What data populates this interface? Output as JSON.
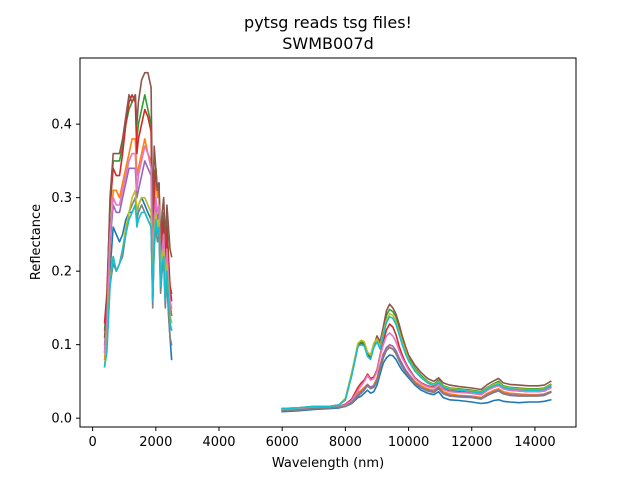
{
  "chart_data": {
    "type": "line",
    "title": "pytsg reads tsg files!",
    "subtitle": "SWMB007d",
    "xlabel": "Wavelength (nm)",
    "ylabel": "Reflectance",
    "xlim": [
      -400,
      15300
    ],
    "ylim": [
      -0.012,
      0.49
    ],
    "xticks": [
      0,
      2000,
      4000,
      6000,
      8000,
      10000,
      12000,
      14000
    ],
    "yticks": [
      0.0,
      0.1,
      0.2,
      0.3,
      0.4
    ],
    "xtick_labels": [
      "0",
      "2000",
      "4000",
      "6000",
      "8000",
      "10000",
      "12000",
      "14000"
    ],
    "ytick_labels": [
      "0.0",
      "0.1",
      "0.2",
      "0.3",
      "0.4"
    ],
    "grid": false,
    "segments": [
      {
        "x": [
          380,
          450,
          550,
          650,
          750,
          850,
          950,
          1050,
          1150,
          1250,
          1350,
          1400,
          1450,
          1550,
          1650,
          1750,
          1850,
          1900,
          1950,
          2000,
          2050,
          2100,
          2150,
          2200,
          2250,
          2300,
          2350,
          2400,
          2450,
          2500
        ]
      },
      {
        "x": [
          6000,
          6500,
          7000,
          7500,
          7800,
          8000,
          8200,
          8400,
          8500,
          8600,
          8700,
          8800,
          8900,
          9000,
          9100,
          9200,
          9300,
          9400,
          9500,
          9600,
          9700,
          9800,
          9900,
          10000,
          10200,
          10400,
          10600,
          10800,
          10950,
          11100,
          11300,
          11600,
          12000,
          12300,
          12500,
          12700,
          12850,
          13000,
          13200,
          13500,
          13800,
          14100,
          14300,
          14500
        ]
      }
    ],
    "series": [
      {
        "color": "#1f77b4",
        "shape_vis": [
          0.09,
          0.13,
          0.2,
          0.26,
          0.25,
          0.24,
          0.25,
          0.27,
          0.28,
          0.28,
          0.29,
          0.27,
          0.29,
          0.3,
          0.29,
          0.28,
          0.27,
          0.16,
          0.24,
          0.28,
          0.25,
          0.26,
          0.18,
          0.21,
          0.22,
          0.16,
          0.2,
          0.15,
          0.11,
          0.08
        ],
        "swir": [
          0.009,
          0.01,
          0.012,
          0.013,
          0.014,
          0.016,
          0.02,
          0.028,
          0.03,
          0.034,
          0.038,
          0.034,
          0.036,
          0.045,
          0.06,
          0.075,
          0.082,
          0.086,
          0.085,
          0.08,
          0.072,
          0.065,
          0.06,
          0.055,
          0.045,
          0.038,
          0.034,
          0.032,
          0.036,
          0.028,
          0.025,
          0.024,
          0.022,
          0.02,
          0.021,
          0.024,
          0.025,
          0.023,
          0.022,
          0.021,
          0.022,
          0.022,
          0.023,
          0.025
        ]
      },
      {
        "color": "#ff7f0e",
        "shape_vis": [
          0.08,
          0.12,
          0.23,
          0.31,
          0.31,
          0.3,
          0.32,
          0.34,
          0.36,
          0.38,
          0.38,
          0.33,
          0.34,
          0.36,
          0.38,
          0.36,
          0.35,
          0.2,
          0.28,
          0.33,
          0.3,
          0.31,
          0.22,
          0.25,
          0.26,
          0.2,
          0.24,
          0.2,
          0.16,
          0.14
        ],
        "swir": [
          0.012,
          0.013,
          0.015,
          0.015,
          0.016,
          0.019,
          0.025,
          0.035,
          0.038,
          0.042,
          0.046,
          0.042,
          0.045,
          0.055,
          0.072,
          0.088,
          0.095,
          0.097,
          0.094,
          0.088,
          0.08,
          0.072,
          0.066,
          0.06,
          0.05,
          0.044,
          0.04,
          0.038,
          0.043,
          0.036,
          0.033,
          0.031,
          0.03,
          0.028,
          0.034,
          0.038,
          0.04,
          0.036,
          0.034,
          0.033,
          0.032,
          0.032,
          0.033,
          0.036
        ]
      },
      {
        "color": "#2ca02c",
        "shape_vis": [
          0.12,
          0.16,
          0.28,
          0.35,
          0.35,
          0.35,
          0.37,
          0.4,
          0.42,
          0.43,
          0.44,
          0.38,
          0.4,
          0.42,
          0.44,
          0.42,
          0.4,
          0.23,
          0.33,
          0.34,
          0.31,
          0.32,
          0.22,
          0.26,
          0.28,
          0.21,
          0.27,
          0.22,
          0.18,
          0.17
        ],
        "swir": [
          0.013,
          0.014,
          0.016,
          0.016,
          0.018,
          0.026,
          0.06,
          0.1,
          0.104,
          0.102,
          0.088,
          0.084,
          0.1,
          0.11,
          0.1,
          0.12,
          0.14,
          0.148,
          0.145,
          0.138,
          0.124,
          0.108,
          0.094,
          0.082,
          0.068,
          0.058,
          0.05,
          0.046,
          0.052,
          0.044,
          0.041,
          0.04,
          0.038,
          0.036,
          0.042,
          0.047,
          0.05,
          0.044,
          0.042,
          0.041,
          0.04,
          0.04,
          0.041,
          0.046
        ]
      },
      {
        "color": "#d62728",
        "shape_vis": [
          0.13,
          0.17,
          0.29,
          0.34,
          0.33,
          0.33,
          0.36,
          0.4,
          0.43,
          0.44,
          0.43,
          0.36,
          0.38,
          0.4,
          0.42,
          0.41,
          0.39,
          0.23,
          0.31,
          0.34,
          0.31,
          0.32,
          0.22,
          0.25,
          0.27,
          0.2,
          0.26,
          0.21,
          0.18,
          0.16
        ],
        "swir": [
          0.011,
          0.012,
          0.014,
          0.015,
          0.016,
          0.019,
          0.026,
          0.042,
          0.048,
          0.052,
          0.06,
          0.054,
          0.056,
          0.066,
          0.086,
          0.104,
          0.12,
          0.128,
          0.124,
          0.114,
          0.098,
          0.086,
          0.076,
          0.068,
          0.055,
          0.048,
          0.044,
          0.042,
          0.048,
          0.04,
          0.037,
          0.036,
          0.034,
          0.032,
          0.038,
          0.043,
          0.046,
          0.04,
          0.038,
          0.037,
          0.036,
          0.036,
          0.037,
          0.042
        ]
      },
      {
        "color": "#9467bd",
        "shape_vis": [
          0.1,
          0.14,
          0.24,
          0.29,
          0.28,
          0.28,
          0.3,
          0.32,
          0.34,
          0.34,
          0.34,
          0.3,
          0.31,
          0.33,
          0.35,
          0.34,
          0.33,
          0.19,
          0.26,
          0.29,
          0.27,
          0.28,
          0.19,
          0.22,
          0.24,
          0.18,
          0.22,
          0.18,
          0.15,
          0.14
        ],
        "swir": [
          0.01,
          0.011,
          0.013,
          0.014,
          0.015,
          0.017,
          0.022,
          0.032,
          0.036,
          0.04,
          0.046,
          0.042,
          0.044,
          0.052,
          0.07,
          0.086,
          0.096,
          0.1,
          0.098,
          0.092,
          0.082,
          0.074,
          0.066,
          0.06,
          0.048,
          0.042,
          0.038,
          0.036,
          0.042,
          0.034,
          0.031,
          0.03,
          0.029,
          0.027,
          0.032,
          0.036,
          0.038,
          0.034,
          0.032,
          0.031,
          0.031,
          0.031,
          0.032,
          0.036
        ]
      },
      {
        "color": "#8c564b",
        "shape_vis": [
          0.11,
          0.15,
          0.3,
          0.36,
          0.36,
          0.36,
          0.38,
          0.41,
          0.44,
          0.43,
          0.44,
          0.4,
          0.43,
          0.46,
          0.47,
          0.47,
          0.45,
          0.26,
          0.37,
          0.34,
          0.31,
          0.32,
          0.23,
          0.28,
          0.3,
          0.24,
          0.29,
          0.26,
          0.23,
          0.22
        ],
        "swir": [
          0.013,
          0.014,
          0.016,
          0.016,
          0.018,
          0.025,
          0.058,
          0.098,
          0.102,
          0.1,
          0.086,
          0.082,
          0.098,
          0.112,
          0.104,
          0.124,
          0.146,
          0.155,
          0.15,
          0.142,
          0.128,
          0.112,
          0.098,
          0.086,
          0.072,
          0.062,
          0.054,
          0.05,
          0.055,
          0.048,
          0.045,
          0.043,
          0.041,
          0.039,
          0.046,
          0.051,
          0.054,
          0.048,
          0.046,
          0.045,
          0.044,
          0.044,
          0.045,
          0.05
        ]
      },
      {
        "color": "#e377c2",
        "shape_vis": [
          0.09,
          0.13,
          0.25,
          0.3,
          0.29,
          0.29,
          0.31,
          0.33,
          0.35,
          0.36,
          0.36,
          0.31,
          0.33,
          0.35,
          0.37,
          0.36,
          0.34,
          0.2,
          0.27,
          0.3,
          0.28,
          0.29,
          0.2,
          0.23,
          0.25,
          0.19,
          0.23,
          0.19,
          0.16,
          0.15
        ],
        "swir": [
          0.012,
          0.013,
          0.015,
          0.015,
          0.016,
          0.018,
          0.024,
          0.038,
          0.044,
          0.05,
          0.058,
          0.052,
          0.054,
          0.064,
          0.084,
          0.1,
          0.112,
          0.116,
          0.112,
          0.104,
          0.092,
          0.082,
          0.074,
          0.066,
          0.054,
          0.047,
          0.043,
          0.041,
          0.046,
          0.039,
          0.036,
          0.035,
          0.034,
          0.032,
          0.038,
          0.042,
          0.044,
          0.04,
          0.038,
          0.037,
          0.036,
          0.036,
          0.037,
          0.041
        ]
      },
      {
        "color": "#7f7f7f",
        "shape_vis": [
          0.07,
          0.1,
          0.18,
          0.21,
          0.2,
          0.21,
          0.22,
          0.25,
          0.28,
          0.29,
          0.3,
          0.27,
          0.28,
          0.29,
          0.28,
          0.27,
          0.26,
          0.15,
          0.23,
          0.26,
          0.24,
          0.25,
          0.17,
          0.2,
          0.21,
          0.15,
          0.19,
          0.14,
          0.11,
          0.1
        ],
        "swir": [
          0.01,
          0.011,
          0.013,
          0.014,
          0.015,
          0.016,
          0.021,
          0.03,
          0.034,
          0.038,
          0.044,
          0.04,
          0.042,
          0.05,
          0.066,
          0.082,
          0.092,
          0.096,
          0.094,
          0.088,
          0.078,
          0.07,
          0.063,
          0.057,
          0.047,
          0.041,
          0.037,
          0.035,
          0.04,
          0.033,
          0.03,
          0.029,
          0.028,
          0.026,
          0.031,
          0.035,
          0.037,
          0.033,
          0.031,
          0.03,
          0.03,
          0.03,
          0.031,
          0.035
        ]
      },
      {
        "color": "#bcbd22",
        "shape_vis": [
          0.07,
          0.1,
          0.19,
          0.22,
          0.2,
          0.21,
          0.23,
          0.26,
          0.28,
          0.3,
          0.31,
          0.28,
          0.29,
          0.3,
          0.3,
          0.29,
          0.28,
          0.17,
          0.25,
          0.28,
          0.26,
          0.27,
          0.19,
          0.22,
          0.23,
          0.17,
          0.21,
          0.17,
          0.14,
          0.13
        ],
        "swir": [
          0.013,
          0.014,
          0.016,
          0.016,
          0.018,
          0.027,
          0.062,
          0.102,
          0.106,
          0.104,
          0.09,
          0.086,
          0.102,
          0.108,
          0.098,
          0.116,
          0.134,
          0.142,
          0.14,
          0.132,
          0.118,
          0.104,
          0.092,
          0.08,
          0.066,
          0.056,
          0.049,
          0.045,
          0.05,
          0.043,
          0.04,
          0.039,
          0.037,
          0.035,
          0.041,
          0.046,
          0.048,
          0.043,
          0.041,
          0.04,
          0.039,
          0.039,
          0.04,
          0.045
        ]
      },
      {
        "color": "#17becf",
        "shape_vis": [
          0.07,
          0.09,
          0.18,
          0.22,
          0.2,
          0.21,
          0.23,
          0.25,
          0.27,
          0.28,
          0.29,
          0.26,
          0.27,
          0.28,
          0.28,
          0.27,
          0.26,
          0.16,
          0.24,
          0.27,
          0.25,
          0.26,
          0.18,
          0.21,
          0.22,
          0.16,
          0.2,
          0.16,
          0.13,
          0.12
        ],
        "swir": [
          0.013,
          0.014,
          0.016,
          0.016,
          0.018,
          0.026,
          0.058,
          0.098,
          0.1,
          0.098,
          0.084,
          0.08,
          0.096,
          0.104,
          0.094,
          0.112,
          0.13,
          0.138,
          0.136,
          0.128,
          0.114,
          0.1,
          0.088,
          0.078,
          0.064,
          0.055,
          0.048,
          0.044,
          0.049,
          0.042,
          0.039,
          0.038,
          0.036,
          0.034,
          0.04,
          0.044,
          0.046,
          0.042,
          0.04,
          0.039,
          0.038,
          0.038,
          0.039,
          0.044
        ]
      }
    ]
  }
}
